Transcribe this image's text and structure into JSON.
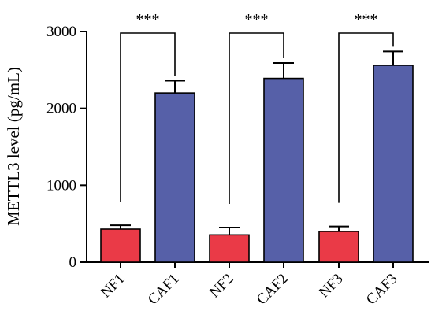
{
  "chart_data": {
    "type": "bar",
    "ylabel": "METTL3 level (pg/mL)",
    "xlabel": "",
    "ylim": [
      0,
      3000
    ],
    "yticks": [
      "0",
      "1000",
      "2000",
      "3000"
    ],
    "categories": [
      "NF1",
      "CAF1",
      "NF2",
      "CAF2",
      "NF3",
      "CAF3"
    ],
    "values": [
      430,
      2200,
      355,
      2390,
      400,
      2560
    ],
    "errors": [
      50,
      160,
      95,
      200,
      65,
      180
    ],
    "bar_colors": [
      "#ea3a47",
      "#5660a8",
      "#ea3a47",
      "#5660a8",
      "#ea3a47",
      "#5660a8"
    ],
    "comparisons": [
      {
        "pair": [
          0,
          1
        ],
        "label": "***"
      },
      {
        "pair": [
          2,
          3
        ],
        "label": "***"
      },
      {
        "pair": [
          4,
          5
        ],
        "label": "***"
      }
    ],
    "grid": false
  }
}
